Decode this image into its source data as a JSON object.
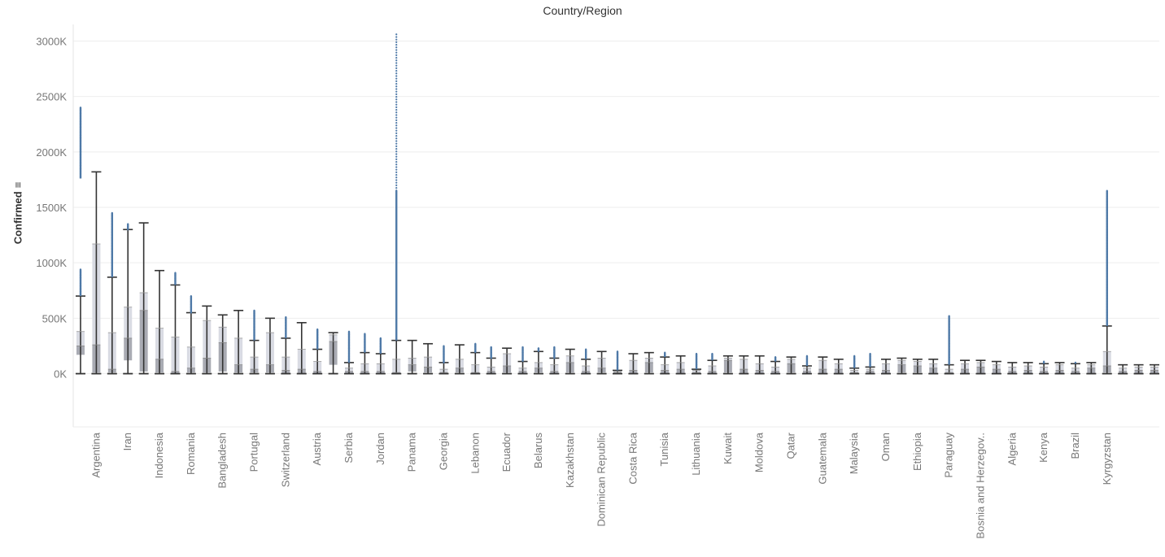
{
  "chart_data": {
    "type": "boxplot",
    "title": "Country/Region",
    "xlabel": "",
    "ylabel": "Confirmed",
    "ylabel_icon": "sort-icon",
    "ylim": [
      -480,
      3150
    ],
    "yticks": [
      0,
      500,
      1000,
      1500,
      2000,
      2500,
      3000
    ],
    "ytick_labels": [
      "0K",
      "500K",
      "1000K",
      "1500K",
      "2000K",
      "2500K",
      "3000K"
    ],
    "grid": true,
    "units": "thousands",
    "labeled_categories": [
      "Argentina",
      "Iran",
      "Indonesia",
      "Romania",
      "Bangladesh",
      "Portugal",
      "Switzerland",
      "Austria",
      "Serbia",
      "Jordan",
      "Panama",
      "Georgia",
      "Lebanon",
      "Ecuador",
      "Belarus",
      "Kazakhstan",
      "Dominican Republic",
      "Costa Rica",
      "Tunisia",
      "Lithuania",
      "Kuwait",
      "Moldova",
      "Qatar",
      "Guatemala",
      "Malaysia",
      "Oman",
      "Ethiopia",
      "Paraguay",
      "Bosnia and Herzegov..",
      "Algeria",
      "Kenya",
      "Brazil",
      "Kyrgyzstan"
    ],
    "boxes": [
      {
        "whisker_high": 700,
        "q3": 380,
        "median": 250,
        "q1": 170,
        "whisker_low": 0,
        "outlier_max": 2400,
        "outlier_gap_low": 940,
        "outlier_gap_high": 1760
      },
      {
        "whisker_high": 1820,
        "q3": 1170,
        "median": 260,
        "q1": 10,
        "whisker_low": 0
      },
      {
        "whisker_high": 870,
        "q3": 370,
        "median": 40,
        "q1": 10,
        "whisker_low": 0,
        "outlier_max": 1450
      },
      {
        "whisker_high": 1300,
        "q3": 600,
        "median": 320,
        "q1": 120,
        "whisker_low": 0,
        "outlier_max": 1350
      },
      {
        "whisker_high": 1360,
        "q3": 730,
        "median": 570,
        "q1": 20,
        "whisker_low": 0
      },
      {
        "whisker_high": 930,
        "q3": 410,
        "median": 130,
        "q1": 10,
        "whisker_low": 0
      },
      {
        "whisker_high": 800,
        "q3": 330,
        "median": 20,
        "q1": 5,
        "whisker_low": 0,
        "outlier_max": 910
      },
      {
        "whisker_high": 550,
        "q3": 240,
        "median": 50,
        "q1": 10,
        "whisker_low": 0,
        "outlier_max": 700
      },
      {
        "whisker_high": 610,
        "q3": 480,
        "median": 140,
        "q1": 10,
        "whisker_low": 0
      },
      {
        "whisker_high": 530,
        "q3": 420,
        "median": 280,
        "q1": 20,
        "whisker_low": 0
      },
      {
        "whisker_high": 570,
        "q3": 320,
        "median": 80,
        "q1": 10,
        "whisker_low": 0
      },
      {
        "whisker_high": 300,
        "q3": 150,
        "median": 40,
        "q1": 10,
        "whisker_low": 0,
        "outlier_max": 570
      },
      {
        "whisker_high": 500,
        "q3": 370,
        "median": 80,
        "q1": 10,
        "whisker_low": 0
      },
      {
        "whisker_high": 320,
        "q3": 150,
        "median": 30,
        "q1": 5,
        "whisker_low": 0,
        "outlier_max": 510
      },
      {
        "whisker_high": 460,
        "q3": 220,
        "median": 40,
        "q1": 5,
        "whisker_low": 0
      },
      {
        "whisker_high": 220,
        "q3": 110,
        "median": 20,
        "q1": 5,
        "whisker_low": 0,
        "outlier_max": 400
      },
      {
        "whisker_high": 370,
        "q3": 350,
        "median": 290,
        "q1": 80,
        "whisker_low": 0
      },
      {
        "whisker_high": 100,
        "q3": 50,
        "median": 20,
        "q1": 5,
        "whisker_low": 0,
        "outlier_max": 380
      },
      {
        "whisker_high": 190,
        "q3": 90,
        "median": 20,
        "q1": 5,
        "whisker_low": 0,
        "outlier_max": 360
      },
      {
        "whisker_high": 180,
        "q3": 90,
        "median": 20,
        "q1": 5,
        "whisker_low": 0,
        "outlier_max": 320
      },
      {
        "whisker_high": 300,
        "q3": 130,
        "median": 10,
        "q1": 2,
        "whisker_low": 0,
        "outlier_max": 3060,
        "outlier_dense_to": 1650
      },
      {
        "whisker_high": 300,
        "q3": 140,
        "median": 80,
        "q1": 20,
        "whisker_low": 0
      },
      {
        "whisker_high": 270,
        "q3": 150,
        "median": 60,
        "q1": 10,
        "whisker_low": 0
      },
      {
        "whisker_high": 100,
        "q3": 40,
        "median": 10,
        "q1": 2,
        "whisker_low": 0,
        "outlier_max": 250
      },
      {
        "whisker_high": 260,
        "q3": 130,
        "median": 50,
        "q1": 10,
        "whisker_low": 0
      },
      {
        "whisker_high": 190,
        "q3": 80,
        "median": 10,
        "q1": 2,
        "whisker_low": 0,
        "outlier_max": 270
      },
      {
        "whisker_high": 140,
        "q3": 60,
        "median": 20,
        "q1": 5,
        "whisker_low": 0,
        "outlier_max": 240
      },
      {
        "whisker_high": 230,
        "q3": 180,
        "median": 70,
        "q1": 10,
        "whisker_low": 0
      },
      {
        "whisker_high": 110,
        "q3": 50,
        "median": 20,
        "q1": 5,
        "whisker_low": 0,
        "outlier_max": 240
      },
      {
        "whisker_high": 200,
        "q3": 100,
        "median": 50,
        "q1": 10,
        "whisker_low": 0,
        "outlier_max": 230
      },
      {
        "whisker_high": 140,
        "q3": 80,
        "median": 20,
        "q1": 5,
        "whisker_low": 0,
        "outlier_max": 240
      },
      {
        "whisker_high": 220,
        "q3": 160,
        "median": 100,
        "q1": 10,
        "whisker_low": 0
      },
      {
        "whisker_high": 130,
        "q3": 70,
        "median": 20,
        "q1": 5,
        "whisker_low": 0,
        "outlier_max": 220
      },
      {
        "whisker_high": 200,
        "q3": 140,
        "median": 50,
        "q1": 10,
        "whisker_low": 0
      },
      {
        "whisker_high": 30,
        "q3": 20,
        "median": 10,
        "q1": 2,
        "whisker_low": 0,
        "outlier_max": 200
      },
      {
        "whisker_high": 180,
        "q3": 120,
        "median": 30,
        "q1": 5,
        "whisker_low": 0
      },
      {
        "whisker_high": 190,
        "q3": 140,
        "median": 100,
        "q1": 10,
        "whisker_low": 0
      },
      {
        "whisker_high": 150,
        "q3": 80,
        "median": 30,
        "q1": 5,
        "whisker_low": 0,
        "outlier_max": 190
      },
      {
        "whisker_high": 160,
        "q3": 100,
        "median": 40,
        "q1": 5,
        "whisker_low": 0
      },
      {
        "whisker_high": 40,
        "q3": 30,
        "median": 10,
        "q1": 2,
        "whisker_low": 0,
        "outlier_max": 180
      },
      {
        "whisker_high": 120,
        "q3": 70,
        "median": 20,
        "q1": 5,
        "whisker_low": 0,
        "outlier_max": 180
      },
      {
        "whisker_high": 160,
        "q3": 140,
        "median": 120,
        "q1": 10,
        "whisker_low": 0
      },
      {
        "whisker_high": 160,
        "q3": 130,
        "median": 40,
        "q1": 5,
        "whisker_low": 0
      },
      {
        "whisker_high": 160,
        "q3": 90,
        "median": 30,
        "q1": 5,
        "whisker_low": 0
      },
      {
        "whisker_high": 110,
        "q3": 60,
        "median": 20,
        "q1": 5,
        "whisker_low": 0,
        "outlier_max": 150
      },
      {
        "whisker_high": 150,
        "q3": 130,
        "median": 90,
        "q1": 10,
        "whisker_low": 0
      },
      {
        "whisker_high": 70,
        "q3": 50,
        "median": 20,
        "q1": 5,
        "whisker_low": 0,
        "outlier_max": 160
      },
      {
        "whisker_high": 150,
        "q3": 120,
        "median": 40,
        "q1": 5,
        "whisker_low": 0
      },
      {
        "whisker_high": 130,
        "q3": 90,
        "median": 40,
        "q1": 5,
        "whisker_low": 0
      },
      {
        "whisker_high": 50,
        "q3": 30,
        "median": 10,
        "q1": 2,
        "whisker_low": 0,
        "outlier_max": 160
      },
      {
        "whisker_high": 60,
        "q3": 40,
        "median": 20,
        "q1": 5,
        "whisker_low": 0,
        "outlier_max": 180
      },
      {
        "whisker_high": 130,
        "q3": 90,
        "median": 30,
        "q1": 5,
        "whisker_low": 0
      },
      {
        "whisker_high": 140,
        "q3": 120,
        "median": 80,
        "q1": 10,
        "whisker_low": 0
      },
      {
        "whisker_high": 130,
        "q3": 110,
        "median": 70,
        "q1": 10,
        "whisker_low": 0
      },
      {
        "whisker_high": 130,
        "q3": 90,
        "median": 50,
        "q1": 5,
        "whisker_low": 0
      },
      {
        "whisker_high": 80,
        "q3": 40,
        "median": 10,
        "q1": 2,
        "whisker_low": 0,
        "outlier_max": 520
      },
      {
        "whisker_high": 120,
        "q3": 90,
        "median": 40,
        "q1": 5,
        "whisker_low": 0
      },
      {
        "whisker_high": 120,
        "q3": 100,
        "median": 60,
        "q1": 5,
        "whisker_low": 0
      },
      {
        "whisker_high": 110,
        "q3": 80,
        "median": 40,
        "q1": 5,
        "whisker_low": 0
      },
      {
        "whisker_high": 100,
        "q3": 60,
        "median": 20,
        "q1": 2,
        "whisker_low": 0
      },
      {
        "whisker_high": 100,
        "q3": 70,
        "median": 30,
        "q1": 5,
        "whisker_low": 0
      },
      {
        "whisker_high": 90,
        "q3": 60,
        "median": 20,
        "q1": 2,
        "whisker_low": 0,
        "outlier_max": 110
      },
      {
        "whisker_high": 100,
        "q3": 80,
        "median": 30,
        "q1": 5,
        "whisker_low": 0
      },
      {
        "whisker_high": 90,
        "q3": 50,
        "median": 20,
        "q1": 2,
        "whisker_low": 0,
        "outlier_max": 100
      },
      {
        "whisker_high": 100,
        "q3": 80,
        "median": 50,
        "q1": 5,
        "whisker_low": 0
      },
      {
        "whisker_high": 430,
        "q3": 200,
        "median": 70,
        "q1": 10,
        "whisker_low": 0,
        "outlier_max": 1650
      },
      {
        "whisker_high": 80,
        "q3": 50,
        "median": 20,
        "q1": 2,
        "whisker_low": 0
      },
      {
        "whisker_high": 80,
        "q3": 60,
        "median": 30,
        "q1": 5,
        "whisker_low": 0
      },
      {
        "whisker_high": 80,
        "q3": 60,
        "median": 30,
        "q1": 5,
        "whisker_low": 0
      }
    ]
  },
  "colors": {
    "outlier": "#4e79a7",
    "whisker": "#333333",
    "box_upper": "#d9dbe3",
    "box_lower": "#a9abb3",
    "gridline": "#eeeeee",
    "tick_text": "#777777"
  }
}
